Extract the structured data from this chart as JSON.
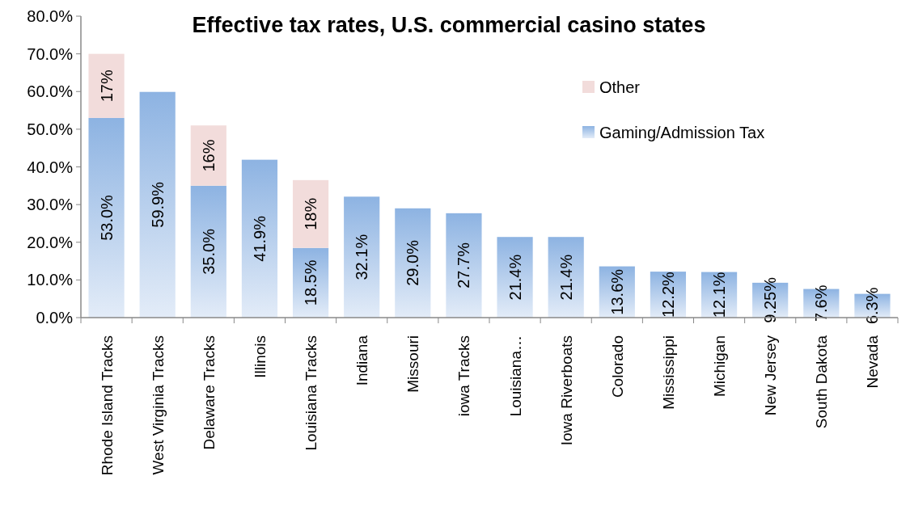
{
  "chart_data": {
    "type": "bar",
    "title": "Effective tax rates, U.S. commercial casino states",
    "stacked": true,
    "categories": [
      "Rhode Island Tracks",
      "West Virginia Tracks",
      "Delaware Tracks",
      "Illinois",
      "Louisiana Tracks",
      "Indiana",
      "Missouri",
      "iowa Tracks",
      "Louisiana…",
      "Iowa Riverboats",
      "Colorado",
      "Mississippi",
      "Michigan",
      "New Jersey",
      "South Dakota",
      "Nevada"
    ],
    "series": [
      {
        "name": "Gaming/Admission Tax",
        "color": "#8db3e2",
        "values": [
          53.0,
          59.9,
          35.0,
          41.9,
          18.5,
          32.1,
          29.0,
          27.7,
          21.4,
          21.4,
          13.6,
          12.2,
          12.1,
          9.25,
          7.6,
          6.3
        ],
        "value_labels": [
          "53.0%",
          "59.9%",
          "35.0%",
          "41.9%",
          "18.5%",
          "32.1%",
          "29.0%",
          "27.7%",
          "21.4%",
          "21.4%",
          "13.6%",
          "12.2%",
          "12.1%",
          "9.25%",
          "7.6%",
          "6.3%"
        ]
      },
      {
        "name": "Other",
        "color": "#f2dcdb",
        "values": [
          17,
          null,
          16,
          null,
          18,
          null,
          null,
          null,
          null,
          null,
          null,
          null,
          null,
          null,
          null,
          null
        ],
        "value_labels": [
          "17%",
          null,
          "16%",
          null,
          "18%",
          null,
          null,
          null,
          null,
          null,
          null,
          null,
          null,
          null,
          null,
          null
        ]
      }
    ],
    "ylim": [
      0,
      80
    ],
    "yticks": [
      {
        "value": 0,
        "label": "0.0%"
      },
      {
        "value": 10,
        "label": "10.0%"
      },
      {
        "value": 20,
        "label": "20.0%"
      },
      {
        "value": 30,
        "label": "30.0%"
      },
      {
        "value": 40,
        "label": "40.0%"
      },
      {
        "value": 50,
        "label": "50.0%"
      },
      {
        "value": 60,
        "label": "60.0%"
      },
      {
        "value": 70,
        "label": "70.0%"
      },
      {
        "value": 80,
        "label": "80.0%"
      }
    ],
    "grid": false,
    "legend": "top right"
  }
}
